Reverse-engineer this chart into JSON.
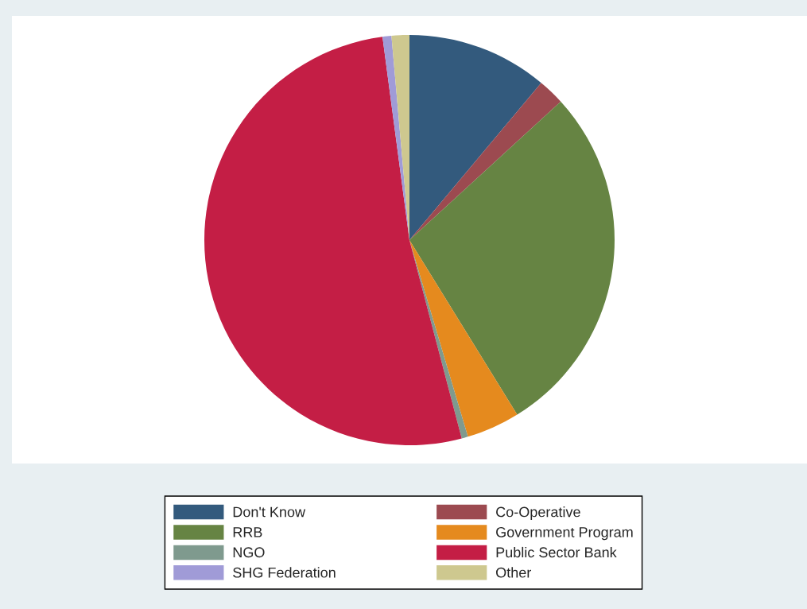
{
  "chart_data": {
    "type": "pie",
    "categories": [
      "Don't Know",
      "Co-Operative",
      "RRB",
      "Government Program",
      "NGO",
      "Public Sector Bank",
      "SHG Federation",
      "Other"
    ],
    "values": [
      11.1,
      2.1,
      28.0,
      4.2,
      0.5,
      52.0,
      0.7,
      1.4
    ],
    "colors": [
      "#335a7d",
      "#9c4a50",
      "#668443",
      "#e58a1e",
      "#7f9a8e",
      "#c41e45",
      "#a09bd7",
      "#cec88f"
    ],
    "legend": "bottom"
  }
}
